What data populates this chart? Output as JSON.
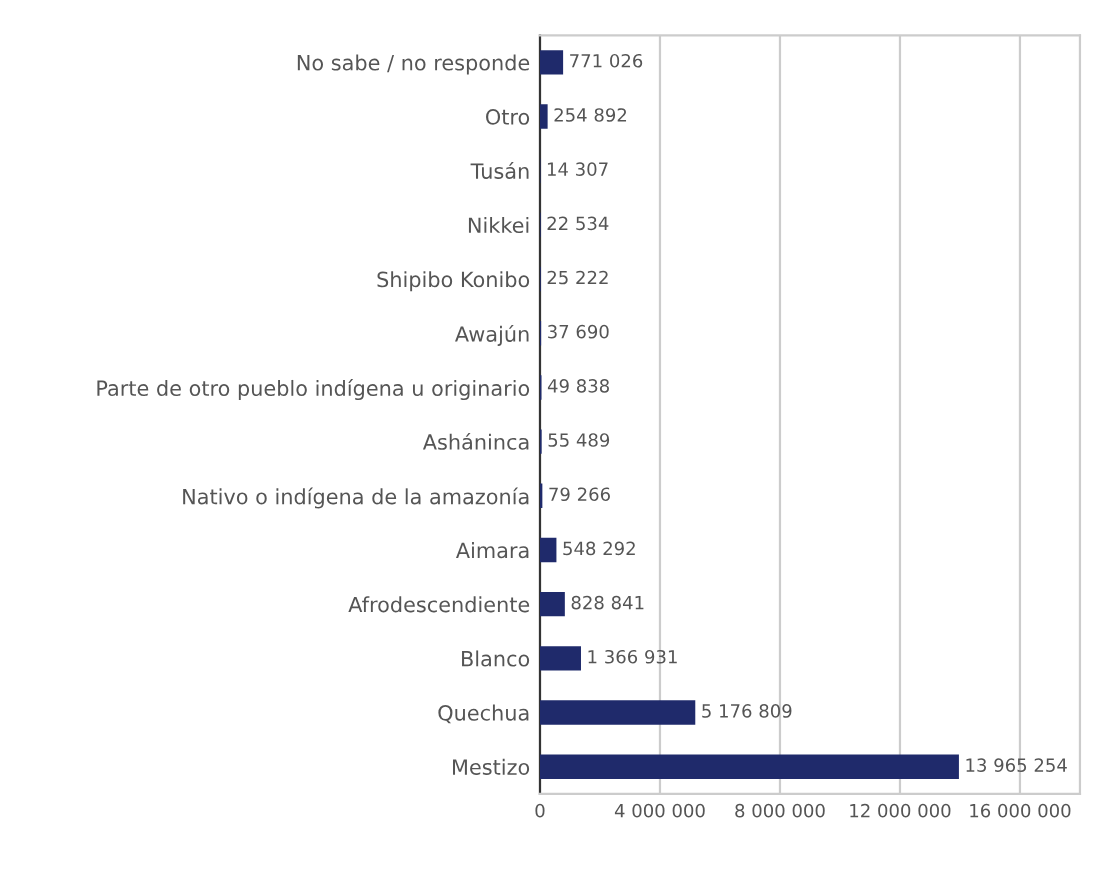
{
  "chart_data": {
    "type": "bar",
    "orientation": "horizontal",
    "categories": [
      "No sabe / no responde",
      "Otro",
      "Tusán",
      "Nikkei",
      "Shipibo Konibo",
      "Awajún",
      "Parte de otro pueblo indígena u originario",
      "Asháninca",
      "Nativo o indígena de la amazonía",
      "Aimara",
      "Afrodescendiente",
      "Blanco",
      "Quechua",
      "Mestizo"
    ],
    "values": [
      771026,
      254892,
      14307,
      22534,
      25222,
      37690,
      49838,
      55489,
      79266,
      548292,
      828841,
      1366931,
      5176809,
      13965254
    ],
    "value_labels": [
      "771 026",
      "254 892",
      "14 307",
      "22 534",
      "25 222",
      "37 690",
      "49 838",
      "55 489",
      "79 266",
      "548 292",
      "828 841",
      "1 366 931",
      "5 176 809",
      "13 965 254"
    ],
    "color": "#1f2a6b",
    "xlim": [
      0,
      18000000
    ],
    "xticks": [
      0,
      {
        "value": 4000000,
        "label": "4 000 000"
      },
      {
        "value": 8000000,
        "label": "8 000 000"
      },
      {
        "value": 12000000,
        "label": "12 000 000"
      },
      {
        "value": 16000000,
        "label": "16 000 000"
      }
    ],
    "grid": "x"
  }
}
